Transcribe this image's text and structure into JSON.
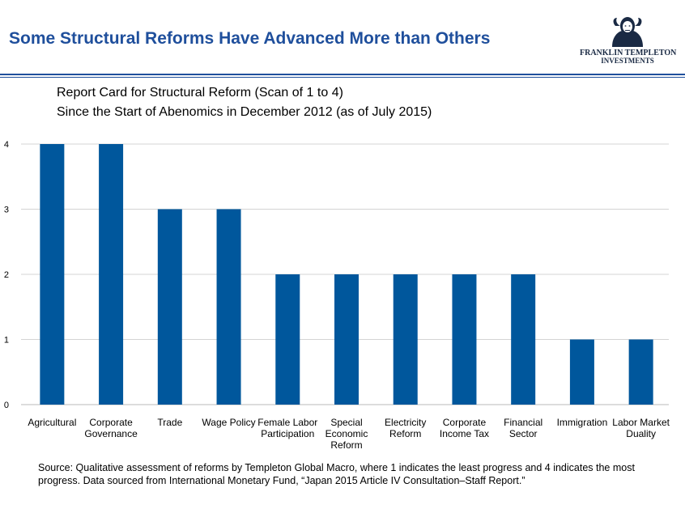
{
  "header": {
    "title": "Some Structural Reforms Have Advanced More than Others",
    "logo_line1": "FRANKLIN TEMPLETON",
    "logo_line2": "INVESTMENTS"
  },
  "chart_data": {
    "type": "bar",
    "title": "Report Card for Structural Reform (Scan of 1 to 4)",
    "subtitle": "Since the Start of Abenomics in December 2012 (as of July 2015)",
    "categories": [
      [
        "Agricultural"
      ],
      [
        "Corporate",
        "Governance"
      ],
      [
        "Trade"
      ],
      [
        "Wage Policy"
      ],
      [
        "Female Labor",
        "Participation"
      ],
      [
        "Special",
        "Economic",
        "Reform"
      ],
      [
        "Electricity",
        "Reform"
      ],
      [
        "Corporate",
        "Income Tax"
      ],
      [
        "Financial",
        "Sector"
      ],
      [
        "Immigration"
      ],
      [
        "Labor Market",
        "Duality"
      ]
    ],
    "values": [
      4,
      4,
      3,
      3,
      2,
      2,
      2,
      2,
      2,
      1,
      1
    ],
    "yticks": [
      "0",
      "1",
      "2",
      "3",
      "4"
    ],
    "ylim": [
      0,
      4
    ],
    "xlabel": "",
    "ylabel": "",
    "grid": true,
    "bar_color": "#00579c",
    "grid_color": "#d4d4d4"
  },
  "footnote": "Source: Qualitative assessment of reforms by Templeton Global Macro, where 1 indicates the least progress and 4 indicates the most progress. Data sourced from International Monetary Fund, “Japan 2015 Article IV Consultation–Staff Report.”"
}
